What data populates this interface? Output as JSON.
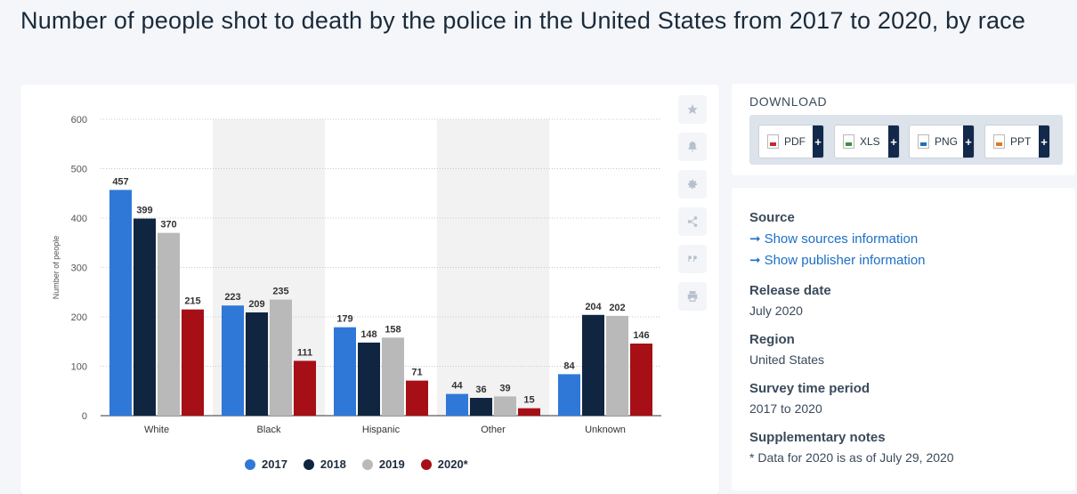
{
  "page": {
    "title": "Number of people shot to death by the police in the United States from 2017 to 2020, by race"
  },
  "toolbar": {
    "tools": [
      {
        "name": "star-icon"
      },
      {
        "name": "bell-icon"
      },
      {
        "name": "gear-icon"
      },
      {
        "name": "share-icon"
      },
      {
        "name": "quote-icon"
      },
      {
        "name": "print-icon"
      }
    ]
  },
  "chart_data": {
    "type": "bar",
    "title": "",
    "xlabel": "",
    "ylabel": "Number of people",
    "ylim": [
      0,
      600
    ],
    "yticks": [
      0,
      100,
      200,
      300,
      400,
      500,
      600
    ],
    "grid": true,
    "legend_position": "bottom",
    "categories": [
      "White",
      "Black",
      "Hispanic",
      "Other",
      "Unknown"
    ],
    "series": [
      {
        "name": "2017",
        "color": "#2f78d8",
        "values": [
          457,
          223,
          179,
          44,
          84
        ]
      },
      {
        "name": "2018",
        "color": "#10253f",
        "values": [
          399,
          209,
          148,
          36,
          204
        ]
      },
      {
        "name": "2019",
        "color": "#b9b9b9",
        "values": [
          370,
          235,
          158,
          39,
          202
        ]
      },
      {
        "name": "2020*",
        "color": "#a50f15",
        "values": [
          215,
          111,
          71,
          15,
          146
        ]
      }
    ],
    "band_color": "#f2f2f2",
    "data_labels": true
  },
  "download": {
    "title": "DOWNLOAD",
    "buttons": [
      {
        "label": "PDF",
        "icon": "pdf-file-icon"
      },
      {
        "label": "XLS",
        "icon": "xls-file-icon"
      },
      {
        "label": "PNG",
        "icon": "png-file-icon"
      },
      {
        "label": "PPT",
        "icon": "ppt-file-icon"
      }
    ],
    "plus": "+"
  },
  "info": {
    "source_heading": "Source",
    "show_sources": "Show sources information",
    "show_publisher": "Show publisher information",
    "arrow": "➞",
    "release_heading": "Release date",
    "release_value": "July 2020",
    "region_heading": "Region",
    "region_value": "United States",
    "survey_heading": "Survey time period",
    "survey_value": "2017 to 2020",
    "notes_heading": "Supplementary notes",
    "notes_value": "* Data for 2020 is as of July 29, 2020"
  }
}
